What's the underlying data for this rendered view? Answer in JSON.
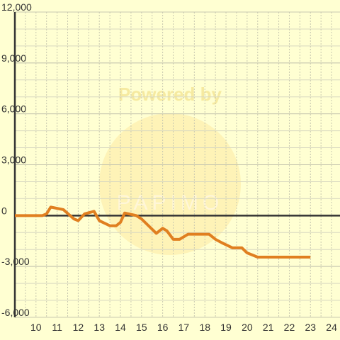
{
  "chart_data": {
    "type": "line",
    "annotations": [
      "Powered by",
      "PAPIMO"
    ],
    "x": [
      9,
      10,
      10.3,
      10.5,
      10.7,
      11.3,
      11.8,
      12,
      12.3,
      12.75,
      13,
      13.5,
      13.8,
      14,
      14.2,
      14.75,
      15,
      15.7,
      16,
      16.2,
      16.5,
      16.8,
      17.2,
      18.2,
      18.5,
      18.8,
      19.3,
      19.75,
      20,
      20.5,
      23
    ],
    "series": [
      {
        "color": "#e07f20",
        "values": [
          0,
          0,
          0,
          100,
          500,
          350,
          -200,
          -300,
          100,
          250,
          -300,
          -600,
          -600,
          -400,
          150,
          0,
          -200,
          -1050,
          -750,
          -900,
          -1400,
          -1400,
          -1100,
          -1100,
          -1400,
          -1600,
          -1900,
          -1900,
          -2200,
          -2450,
          -2450
        ]
      }
    ],
    "xlim": [
      9,
      24.4
    ],
    "ylim": [
      -6000,
      12000
    ],
    "xticks": [
      10,
      11,
      12,
      13,
      14,
      15,
      16,
      17,
      18,
      19,
      20,
      21,
      22,
      23,
      24
    ],
    "yticks": [
      {
        "value": -6000,
        "label": "-6,000"
      },
      {
        "value": -3000,
        "label": "-3,000"
      },
      0,
      {
        "value": 3000,
        "label": "3,000"
      },
      {
        "value": 6000,
        "label": "6,000"
      },
      {
        "value": 9000,
        "label": "9,000"
      },
      {
        "value": 12000,
        "label": "12,000"
      }
    ],
    "grid": true,
    "ygrid_step": 1000,
    "xgrid_step": 0.5
  }
}
